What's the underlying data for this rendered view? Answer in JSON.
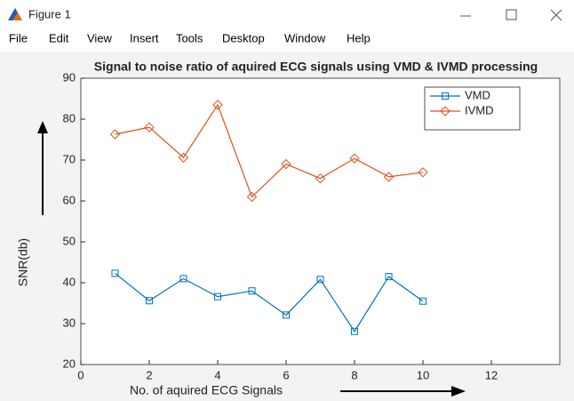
{
  "window": {
    "title": "Figure 1"
  },
  "menu": [
    "File",
    "Edit",
    "View",
    "Insert",
    "Tools",
    "Desktop",
    "Window",
    "Help"
  ],
  "chart_data": {
    "type": "line",
    "title": "Signal to noise ratio of aquired ECG signals using VMD & IVMD processing",
    "xlabel": "No. of aquired  ECG Signals",
    "ylabel": "SNR(db)",
    "x": [
      1,
      2,
      3,
      4,
      5,
      6,
      7,
      8,
      9,
      10
    ],
    "series": [
      {
        "name": "VMD",
        "color": "#0072bd",
        "marker": "square",
        "values": [
          42.3,
          35.6,
          41,
          36.6,
          38,
          32.1,
          40.8,
          28.1,
          41.5,
          35.5
        ]
      },
      {
        "name": "IVMD",
        "color": "#d95319",
        "marker": "diamond",
        "values": [
          76.3,
          78,
          70.6,
          83.5,
          61,
          69,
          65.5,
          70.4,
          65.9,
          67
        ]
      }
    ],
    "xlim": [
      0,
      14
    ],
    "xticks": [
      0,
      2,
      4,
      6,
      8,
      10,
      12
    ],
    "ylim": [
      20,
      90
    ],
    "yticks": [
      20,
      30,
      40,
      50,
      60,
      70,
      80,
      90
    ],
    "legend": "northeast"
  }
}
